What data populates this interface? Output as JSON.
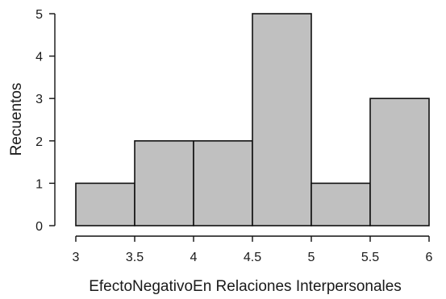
{
  "chart_data": {
    "type": "bar",
    "subtype": "histogram",
    "bins": [
      {
        "from": 3.0,
        "to": 3.5,
        "count": 1
      },
      {
        "from": 3.5,
        "to": 4.0,
        "count": 2
      },
      {
        "from": 4.0,
        "to": 4.5,
        "count": 2
      },
      {
        "from": 4.5,
        "to": 5.0,
        "count": 5
      },
      {
        "from": 5.0,
        "to": 5.5,
        "count": 1
      },
      {
        "from": 5.5,
        "to": 6.0,
        "count": 3
      }
    ],
    "xlabel": "EfectoNegativoEn Relaciones Interpersonales",
    "ylabel": "Recuentos",
    "xlim": [
      3,
      6
    ],
    "ylim": [
      0,
      5
    ],
    "x_ticks": [
      {
        "value": 3,
        "label": "3"
      },
      {
        "value": 3.5,
        "label": "3.5"
      },
      {
        "value": 4,
        "label": "4"
      },
      {
        "value": 4.5,
        "label": "4.5"
      },
      {
        "value": 5,
        "label": "5"
      },
      {
        "value": 5.5,
        "label": "5.5"
      },
      {
        "value": 6,
        "label": "6"
      }
    ],
    "y_ticks": [
      {
        "value": 0,
        "label": "0"
      },
      {
        "value": 1,
        "label": "1"
      },
      {
        "value": 2,
        "label": "2"
      },
      {
        "value": 3,
        "label": "3"
      },
      {
        "value": 4,
        "label": "4"
      },
      {
        "value": 5,
        "label": "5"
      }
    ],
    "grid": false,
    "colors": {
      "bar_fill": "#c0c0c0",
      "bar_edge": "#111111",
      "axis": "#111111",
      "text": "#1a1a1a"
    }
  }
}
